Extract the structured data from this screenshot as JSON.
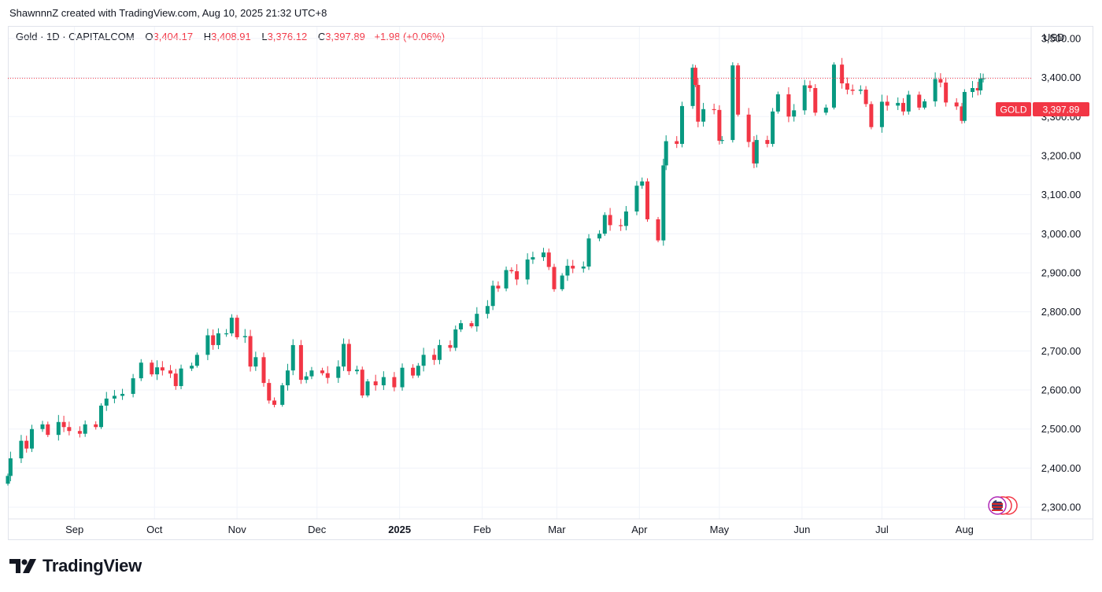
{
  "caption": "ShawnnnZ created with TradingView.com, Aug 10, 2025 21:32 UTC+8",
  "legend": {
    "symbol": "Gold · 1D · CAPITALCOM",
    "open_label": "O",
    "open": "3,404.17",
    "high_label": "H",
    "high": "3,408.91",
    "low_label": "L",
    "low": "3,376.12",
    "close_label": "C",
    "close": "3,397.89",
    "change": "+1.98 (+0.06%)"
  },
  "currency": "USD",
  "price_tag": {
    "name": "GOLD",
    "value": "3,397.89"
  },
  "brand": {
    "name": "TradingView",
    "icon": "tradingview-logo-icon"
  },
  "colors": {
    "up": "#089981",
    "down": "#f23645",
    "grid": "#f0f3fa",
    "border": "#e0e3eb"
  },
  "chart_data": {
    "type": "candlestick",
    "title": "Gold · 1D · CAPITALCOM",
    "ylim": [
      2270,
      3530
    ],
    "y_ticks": [
      "2,300.00",
      "2,400.00",
      "2,500.00",
      "2,600.00",
      "2,700.00",
      "2,800.00",
      "2,900.00",
      "3,000.00",
      "3,100.00",
      "3,200.00",
      "3,300.00",
      "3,400.00",
      "3,500.00"
    ],
    "y_tick_values": [
      2300,
      2400,
      2500,
      2600,
      2700,
      2800,
      2900,
      3000,
      3100,
      3200,
      3300,
      3400,
      3500
    ],
    "x_range": [
      "2024-08-07",
      "2025-08-26"
    ],
    "x_ticks": [
      {
        "label": "Sep",
        "date": "2024-09-01",
        "bold": false
      },
      {
        "label": "Oct",
        "date": "2024-10-01",
        "bold": false
      },
      {
        "label": "Nov",
        "date": "2024-11-01",
        "bold": false
      },
      {
        "label": "Dec",
        "date": "2024-12-01",
        "bold": false
      },
      {
        "label": "2025",
        "date": "2025-01-01",
        "bold": true
      },
      {
        "label": "Feb",
        "date": "2025-02-01",
        "bold": false
      },
      {
        "label": "Mar",
        "date": "2025-03-01",
        "bold": false
      },
      {
        "label": "Apr",
        "date": "2025-04-01",
        "bold": false
      },
      {
        "label": "May",
        "date": "2025-05-01",
        "bold": false
      },
      {
        "label": "Jun",
        "date": "2025-06-01",
        "bold": false
      },
      {
        "label": "Jul",
        "date": "2025-07-01",
        "bold": false
      },
      {
        "label": "Aug",
        "date": "2025-08-01",
        "bold": false
      }
    ],
    "last_price": 3397.89,
    "closes": [
      [
        "2024-08-07",
        2380
      ],
      [
        "2024-08-08",
        2425
      ],
      [
        "2024-08-12",
        2470
      ],
      [
        "2024-08-14",
        2450
      ],
      [
        "2024-08-16",
        2500
      ],
      [
        "2024-08-20",
        2512
      ],
      [
        "2024-08-22",
        2485
      ],
      [
        "2024-08-26",
        2518
      ],
      [
        "2024-08-28",
        2505
      ],
      [
        "2024-08-30",
        2495
      ],
      [
        "2024-09-03",
        2488
      ],
      [
        "2024-09-05",
        2512
      ],
      [
        "2024-09-09",
        2505
      ],
      [
        "2024-09-11",
        2560
      ],
      [
        "2024-09-13",
        2578
      ],
      [
        "2024-09-16",
        2585
      ],
      [
        "2024-09-19",
        2590
      ],
      [
        "2024-09-23",
        2630
      ],
      [
        "2024-09-26",
        2670
      ],
      [
        "2024-09-30",
        2640
      ],
      [
        "2024-10-02",
        2658
      ],
      [
        "2024-10-04",
        2650
      ],
      [
        "2024-10-07",
        2642
      ],
      [
        "2024-10-09",
        2610
      ],
      [
        "2024-10-11",
        2655
      ],
      [
        "2024-10-15",
        2662
      ],
      [
        "2024-10-17",
        2690
      ],
      [
        "2024-10-21",
        2740
      ],
      [
        "2024-10-23",
        2715
      ],
      [
        "2024-10-25",
        2745
      ],
      [
        "2024-10-28",
        2745
      ],
      [
        "2024-10-30",
        2785
      ],
      [
        "2024-11-01",
        2735
      ],
      [
        "2024-11-04",
        2738
      ],
      [
        "2024-11-06",
        2660
      ],
      [
        "2024-11-08",
        2684
      ],
      [
        "2024-11-11",
        2618
      ],
      [
        "2024-11-13",
        2573
      ],
      [
        "2024-11-15",
        2562
      ],
      [
        "2024-11-18",
        2612
      ],
      [
        "2024-11-20",
        2650
      ],
      [
        "2024-11-22",
        2715
      ],
      [
        "2024-11-25",
        2626
      ],
      [
        "2024-11-27",
        2635
      ],
      [
        "2024-11-29",
        2650
      ],
      [
        "2024-12-03",
        2643
      ],
      [
        "2024-12-05",
        2631
      ],
      [
        "2024-12-09",
        2660
      ],
      [
        "2024-12-11",
        2718
      ],
      [
        "2024-12-13",
        2648
      ],
      [
        "2024-12-16",
        2652
      ],
      [
        "2024-12-18",
        2586
      ],
      [
        "2024-12-20",
        2622
      ],
      [
        "2024-12-23",
        2612
      ],
      [
        "2024-12-26",
        2633
      ],
      [
        "2024-12-30",
        2607
      ],
      [
        "2025-01-02",
        2657
      ],
      [
        "2025-01-06",
        2637
      ],
      [
        "2025-01-08",
        2662
      ],
      [
        "2025-01-10",
        2690
      ],
      [
        "2025-01-14",
        2677
      ],
      [
        "2025-01-16",
        2715
      ],
      [
        "2025-01-20",
        2708
      ],
      [
        "2025-01-22",
        2755
      ],
      [
        "2025-01-24",
        2771
      ],
      [
        "2025-01-28",
        2763
      ],
      [
        "2025-01-30",
        2795
      ],
      [
        "2025-02-03",
        2815
      ],
      [
        "2025-02-05",
        2867
      ],
      [
        "2025-02-07",
        2860
      ],
      [
        "2025-02-10",
        2907
      ],
      [
        "2025-02-12",
        2904
      ],
      [
        "2025-02-14",
        2883
      ],
      [
        "2025-02-18",
        2934
      ],
      [
        "2025-02-20",
        2940
      ],
      [
        "2025-02-24",
        2952
      ],
      [
        "2025-02-26",
        2915
      ],
      [
        "2025-02-28",
        2858
      ],
      [
        "2025-03-03",
        2893
      ],
      [
        "2025-03-05",
        2918
      ],
      [
        "2025-03-07",
        2911
      ],
      [
        "2025-03-11",
        2916
      ],
      [
        "2025-03-13",
        2988
      ],
      [
        "2025-03-17",
        3000
      ],
      [
        "2025-03-19",
        3048
      ],
      [
        "2025-03-21",
        3022
      ],
      [
        "2025-03-25",
        3020
      ],
      [
        "2025-03-27",
        3057
      ],
      [
        "2025-03-31",
        3123
      ],
      [
        "2025-04-02",
        3134
      ],
      [
        "2025-04-04",
        3037
      ],
      [
        "2025-04-08",
        2983
      ],
      [
        "2025-04-10",
        3175
      ],
      [
        "2025-04-11",
        3237
      ],
      [
        "2025-04-15",
        3230
      ],
      [
        "2025-04-17",
        3327
      ],
      [
        "2025-04-21",
        3425
      ],
      [
        "2025-04-22",
        3381
      ],
      [
        "2025-04-23",
        3287
      ],
      [
        "2025-04-25",
        3319
      ],
      [
        "2025-04-29",
        3317
      ],
      [
        "2025-05-01",
        3238
      ],
      [
        "2025-05-02",
        3240
      ],
      [
        "2025-05-06",
        3431
      ],
      [
        "2025-05-08",
        3305
      ],
      [
        "2025-05-12",
        3235
      ],
      [
        "2025-05-14",
        3180
      ],
      [
        "2025-05-15",
        3240
      ],
      [
        "2025-05-19",
        3230
      ],
      [
        "2025-05-21",
        3313
      ],
      [
        "2025-05-23",
        3357
      ],
      [
        "2025-05-27",
        3300
      ],
      [
        "2025-05-29",
        3316
      ],
      [
        "2025-06-02",
        3380
      ],
      [
        "2025-06-04",
        3373
      ],
      [
        "2025-06-06",
        3310
      ],
      [
        "2025-06-10",
        3323
      ],
      [
        "2025-06-13",
        3433
      ],
      [
        "2025-06-16",
        3385
      ],
      [
        "2025-06-18",
        3369
      ],
      [
        "2025-06-20",
        3366
      ],
      [
        "2025-06-23",
        3369
      ],
      [
        "2025-06-25",
        3332
      ],
      [
        "2025-06-27",
        3273
      ],
      [
        "2025-07-01",
        3338
      ],
      [
        "2025-07-03",
        3328
      ],
      [
        "2025-07-07",
        3335
      ],
      [
        "2025-07-09",
        3313
      ],
      [
        "2025-07-11",
        3356
      ],
      [
        "2025-07-15",
        3323
      ],
      [
        "2025-07-17",
        3339
      ],
      [
        "2025-07-21",
        3396
      ],
      [
        "2025-07-23",
        3387
      ],
      [
        "2025-07-25",
        3336
      ],
      [
        "2025-07-29",
        3326
      ],
      [
        "2025-07-31",
        3289
      ],
      [
        "2025-08-01",
        3363
      ],
      [
        "2025-08-04",
        3373
      ],
      [
        "2025-08-06",
        3367
      ],
      [
        "2025-08-07",
        3397
      ],
      [
        "2025-08-08",
        3398
      ]
    ]
  }
}
